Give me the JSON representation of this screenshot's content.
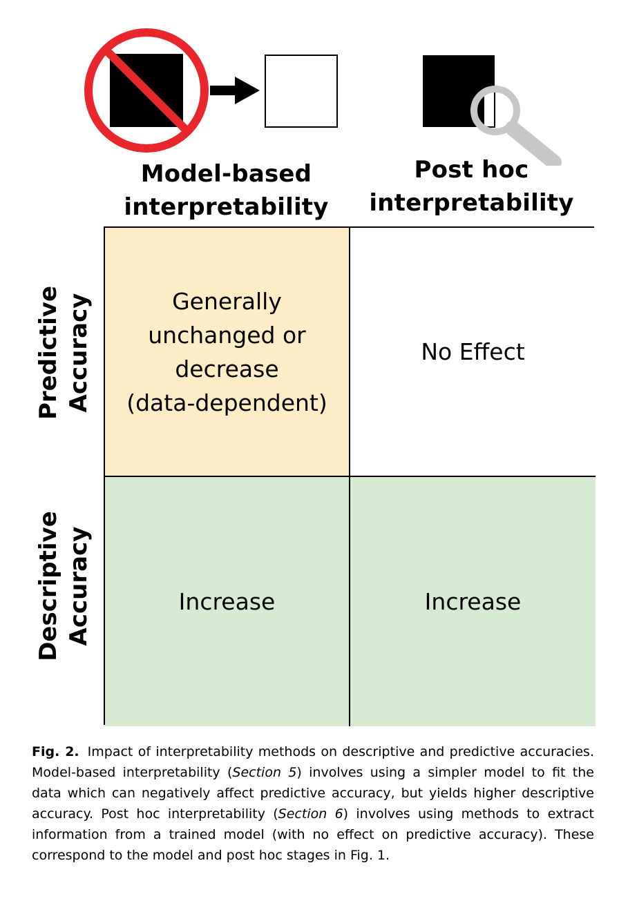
{
  "colors": {
    "cell_model_predictive": "#fcedc6",
    "cell_posthoc_predictive": "#ffffff",
    "cell_descriptive": "#d6ebd1",
    "no_sign_red": "#e8262b",
    "magnifier_gray": "#c7c7c7"
  },
  "icons": {
    "left": [
      "black-box-icon",
      "no-sign-icon",
      "right-arrow-icon",
      "white-box-icon"
    ],
    "right": [
      "black-box-icon",
      "magnifying-glass-icon"
    ]
  },
  "columns": {
    "model_based": [
      "Model-based",
      "interpretability"
    ],
    "post_hoc": [
      "Post hoc",
      "interpretability"
    ]
  },
  "rows": {
    "predictive": [
      "Predictive",
      "Accuracy"
    ],
    "descriptive": [
      "Descriptive",
      "Accuracy"
    ]
  },
  "cells": {
    "model_predictive": [
      "Generally",
      "unchanged or",
      "decrease",
      "(data-dependent)"
    ],
    "posthoc_predictive": "No Effect",
    "model_descriptive": "Increase",
    "posthoc_descriptive": "Increase"
  },
  "caption": {
    "label": "Fig. 2.",
    "t1": "Impact of interpretability methods on descriptive and predictive accuracies. Model-based interpretability (",
    "ref1": "Section 5",
    "t2": ") involves using a simpler model to fit the data which can negatively affect predictive accuracy, but yields higher descriptive accuracy. Post hoc interpretability (",
    "ref2": "Section 6",
    "t3": ") involves using methods to extract information from a trained model (with no effect on predictive accuracy). These correspond to the model and post hoc stages in Fig. 1."
  }
}
